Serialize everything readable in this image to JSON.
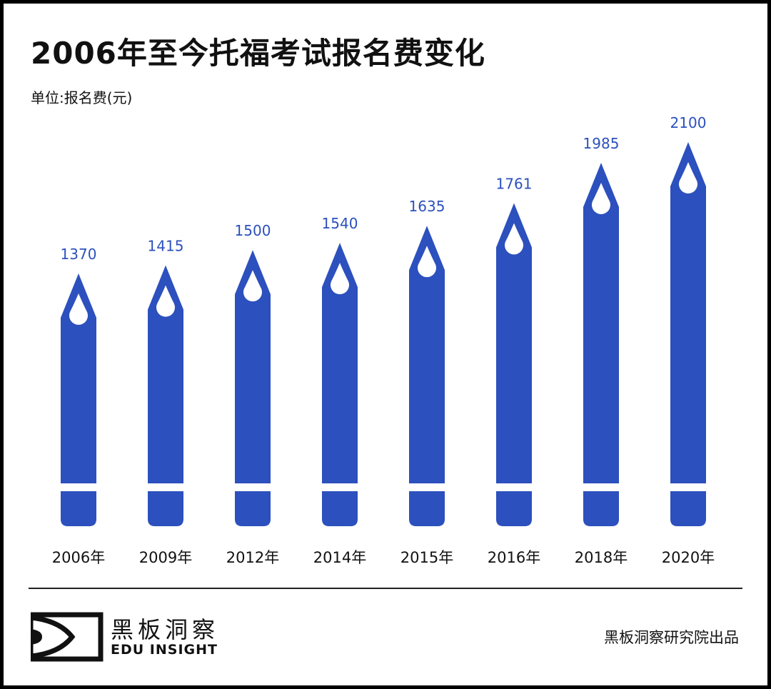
{
  "title": "2006年至今托福考试报名费变化",
  "unit_label": "单位:报名费(元)",
  "chart_data": {
    "type": "bar",
    "title": "2006年至今托福考试报名费变化",
    "ylabel": "单位:报名费(元)",
    "categories": [
      "2006年",
      "2009年",
      "2012年",
      "2014年",
      "2015年",
      "2016年",
      "2018年",
      "2020年"
    ],
    "values": [
      1370,
      1415,
      1500,
      1540,
      1635,
      1761,
      1985,
      2100
    ],
    "bar_style": "pencil",
    "grid": false,
    "colors": {
      "bar": "#2c50bd",
      "label": "#2c50bd"
    }
  },
  "footer": {
    "logo_cn": "黑板洞察",
    "logo_en": "EDU INSIGHT",
    "credit": "黑板洞察研究院出品"
  }
}
